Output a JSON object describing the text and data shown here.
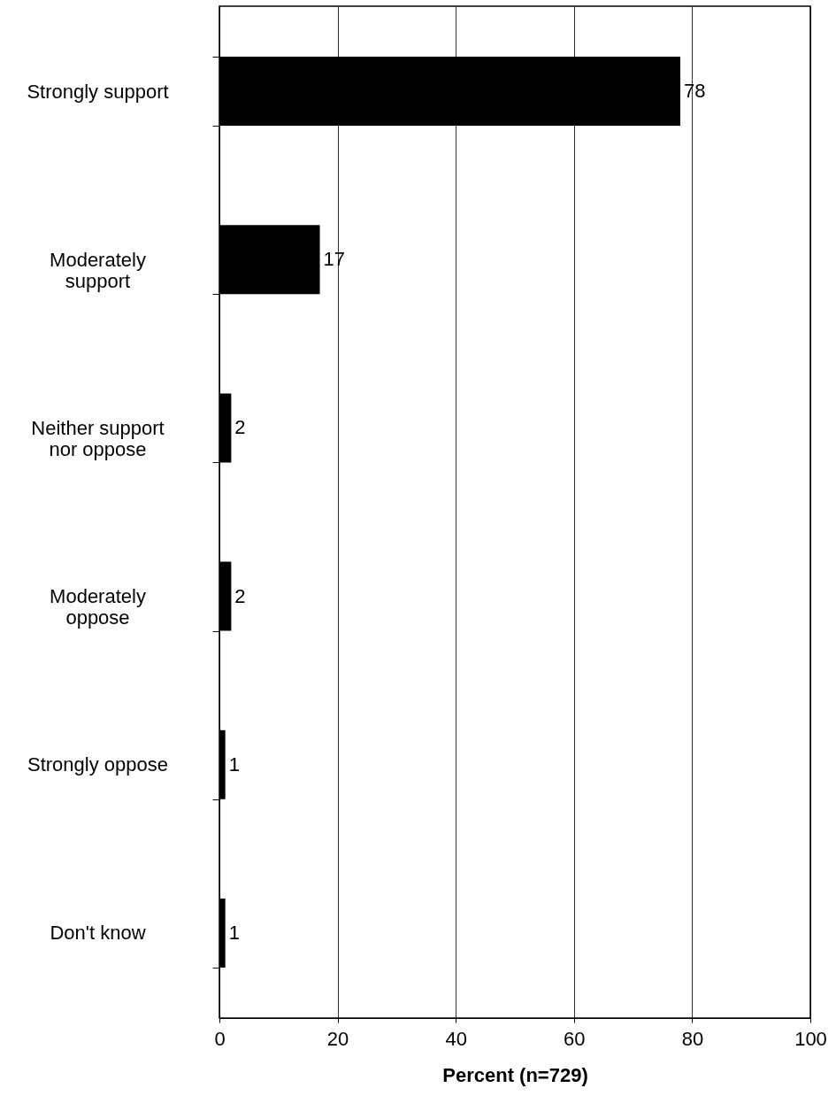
{
  "chart_data": {
    "type": "bar",
    "orientation": "horizontal",
    "xlabel": "Percent (n=729)",
    "categories": [
      "Strongly support",
      "Moderately support",
      "Neither support nor oppose",
      "Moderately oppose",
      "Strongly oppose",
      "Don't know"
    ],
    "values": [
      78,
      17,
      2,
      2,
      1,
      1
    ],
    "color": "#000000",
    "xlim": [
      0,
      100
    ],
    "xticks": [
      0,
      20,
      40,
      60,
      80,
      100
    ],
    "grid": "x",
    "data_labels": true
  }
}
